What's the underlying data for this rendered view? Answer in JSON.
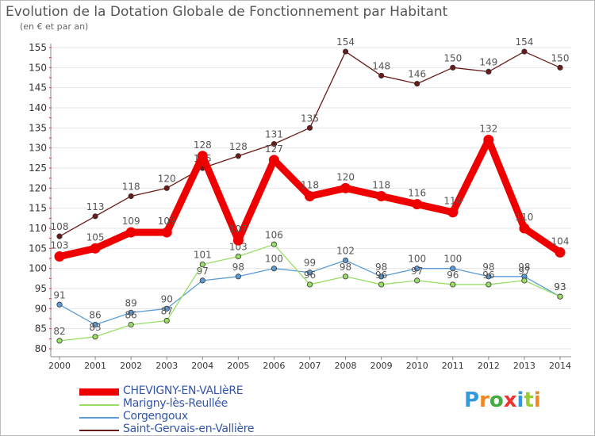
{
  "header": {
    "title": "Evolution de la Dotation Globale de Fonctionnement par Habitant",
    "subtitle": "(en € et par an)"
  },
  "logo": {
    "text": "Proxiti"
  },
  "chart_data": {
    "type": "line",
    "title": "Evolution de la Dotation Globale de Fonctionnement par Habitant",
    "subtitle": "(en € et par an)",
    "x": [
      "2000",
      "2001",
      "2002",
      "2003",
      "2004",
      "2005",
      "2006",
      "2007",
      "2008",
      "2009",
      "2010",
      "2011",
      "2012",
      "2013",
      "2014"
    ],
    "ylim": [
      80,
      155
    ],
    "yticks": [
      80,
      85,
      90,
      95,
      100,
      105,
      110,
      115,
      120,
      125,
      130,
      135,
      140,
      145,
      150,
      155
    ],
    "grid": true,
    "legend_position": "bottom-left",
    "series": [
      {
        "name": "Saint-Gervais-en-Vallière",
        "color": "#6b1a1a",
        "values": [
          108,
          113,
          118,
          120,
          125,
          128,
          131,
          135,
          154,
          148,
          146,
          150,
          149,
          154,
          150
        ]
      },
      {
        "name": "Corgengoux",
        "color": "#5b9bd5",
        "values": [
          91,
          86,
          89,
          90,
          97,
          98,
          100,
          99,
          102,
          98,
          100,
          100,
          98,
          98,
          93
        ]
      },
      {
        "name": "Marigny-lès-Reullée",
        "color": "#99dd66",
        "values": [
          82,
          83,
          86,
          87,
          101,
          103,
          106,
          96,
          98,
          96,
          97,
          96,
          96,
          97,
          93
        ]
      },
      {
        "name": "CHEVIGNY-EN-VALIèRE",
        "color": "#ee0000",
        "values": [
          103,
          105,
          109,
          109,
          128,
          107,
          127,
          118,
          120,
          118,
          116,
          114,
          132,
          110,
          104
        ]
      }
    ]
  }
}
